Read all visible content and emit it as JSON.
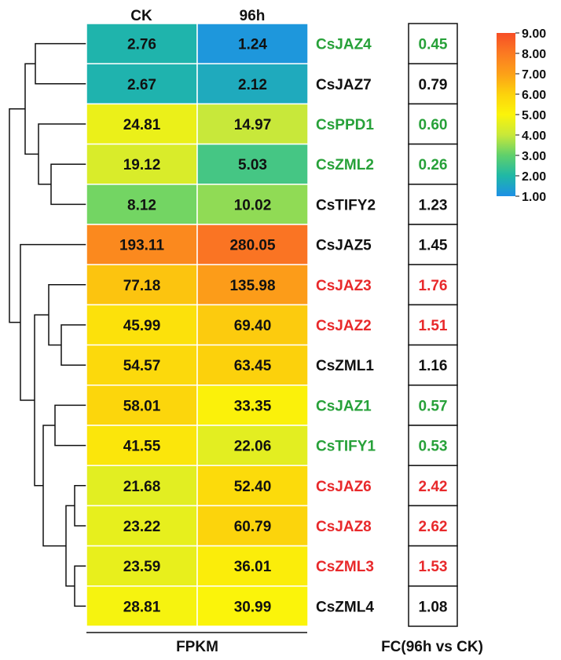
{
  "chart_data": {
    "type": "heatmap",
    "columns": [
      "CK",
      "96h"
    ],
    "value_label": "FPKM",
    "fc_label": "FC(96h vs CK)",
    "color_scale": {
      "min": 1.0,
      "max": 9.0,
      "ticks": [
        "9.00",
        "8.00",
        "7.00",
        "6.00",
        "5.00",
        "4.00",
        "3.00",
        "2.00",
        "1.00"
      ],
      "stops": [
        "#1e90e6",
        "#1fb8a6",
        "#5fd06c",
        "#c8e83a",
        "#fbf40a",
        "#fcd20c",
        "#fca018",
        "#fb7a22",
        "#f74e26"
      ]
    },
    "label_colors": {
      "up": "#e8292b",
      "down": "#27a139",
      "none": "#111111"
    },
    "rows": [
      {
        "gene": "CsJAZ4",
        "ck": "2.76",
        "h96": "1.24",
        "fc": "0.45",
        "status": "down"
      },
      {
        "gene": "CsJAZ7",
        "ck": "2.67",
        "h96": "2.12",
        "fc": "0.79",
        "status": "none"
      },
      {
        "gene": "CsPPD1",
        "ck": "24.81",
        "h96": "14.97",
        "fc": "0.60",
        "status": "down"
      },
      {
        "gene": "CsZML2",
        "ck": "19.12",
        "h96": "5.03",
        "fc": "0.26",
        "status": "down"
      },
      {
        "gene": "CsTIFY2",
        "ck": "8.12",
        "h96": "10.02",
        "fc": "1.23",
        "status": "none"
      },
      {
        "gene": "CsJAZ5",
        "ck": "193.11",
        "h96": "280.05",
        "fc": "1.45",
        "status": "none"
      },
      {
        "gene": "CsJAZ3",
        "ck": "77.18",
        "h96": "135.98",
        "fc": "1.76",
        "status": "up"
      },
      {
        "gene": "CsJAZ2",
        "ck": "45.99",
        "h96": "69.40",
        "fc": "1.51",
        "status": "up"
      },
      {
        "gene": "CsZML1",
        "ck": "54.57",
        "h96": "63.45",
        "fc": "1.16",
        "status": "none"
      },
      {
        "gene": "CsJAZ1",
        "ck": "58.01",
        "h96": "33.35",
        "fc": "0.57",
        "status": "down"
      },
      {
        "gene": "CsTIFY1",
        "ck": "41.55",
        "h96": "22.06",
        "fc": "0.53",
        "status": "down"
      },
      {
        "gene": "CsJAZ6",
        "ck": "21.68",
        "h96": "52.40",
        "fc": "2.42",
        "status": "up"
      },
      {
        "gene": "CsJAZ8",
        "ck": "23.22",
        "h96": "60.79",
        "fc": "2.62",
        "status": "up"
      },
      {
        "gene": "CsZML3",
        "ck": "23.59",
        "h96": "36.01",
        "fc": "1.53",
        "status": "up"
      },
      {
        "gene": "CsZML4",
        "ck": "28.81",
        "h96": "30.99",
        "fc": "1.08",
        "status": "none"
      }
    ]
  }
}
